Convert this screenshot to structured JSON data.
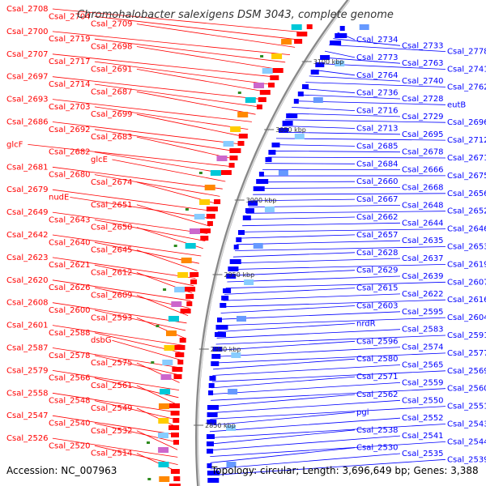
{
  "title": "Chromohalobacter salexigens DSM 3043, complete genome",
  "accession": "Accession: NC_007963",
  "summary": "Topology: circular; Length: 3,696,649 bp; Genes: 3,388",
  "colors": {
    "reverse": "#ff0000",
    "forward": "#0000ff",
    "backbone": "#888888",
    "marker": "#2e8b1e"
  },
  "kbp_marks": [
    {
      "label": "3100 kbp"
    },
    {
      "label": "3050 kbp"
    },
    {
      "label": "3000 kbp"
    },
    {
      "label": "2950 kbp"
    },
    {
      "label": "2900 kbp"
    },
    {
      "label": "2850 kbp"
    }
  ],
  "left_labels": [
    "Csal_2708",
    "Csal_2704",
    "Csal_2709",
    "Csal_2700",
    "Csal_2719",
    "Csal_2698",
    "Csal_2707",
    "Csal_2717",
    "Csal_2691",
    "Csal_2697",
    "Csal_2714",
    "Csal_2687",
    "Csal_2693",
    "Csal_2703",
    "Csal_2699",
    "Csal_2686",
    "Csal_2692",
    "Csal_2683",
    "glcF",
    "Csal_2682",
    "glcE",
    "Csal_2681",
    "Csal_2680",
    "Csal_2674",
    "Csal_2679",
    "nudE",
    "Csal_2651",
    "Csal_2649",
    "Csal_2643",
    "Csal_2650",
    "Csal_2642",
    "Csal_2640",
    "Csal_2645",
    "Csal_2623",
    "Csal_2621",
    "Csal_2612",
    "Csal_2620",
    "Csal_2626",
    "Csal_2609",
    "Csal_2608",
    "Csal_2600",
    "Csal_2593",
    "Csal_2601",
    "Csal_2588",
    "dsbG",
    "Csal_2587",
    "Csal_2578",
    "Csal_2575",
    "Csal_2579",
    "Csal_2566",
    "Csal_2561",
    "Csal_2558",
    "Csal_2548",
    "Csal_2549",
    "Csal_2547",
    "Csal_2540",
    "Csal_2532",
    "Csal_2526",
    "Csal_2520",
    "Csal_2514"
  ],
  "right_labels": [
    "Csal_2734",
    "Csal_2733",
    "Csal_2778",
    "Csal_2773",
    "Csal_2763",
    "Csal_2741",
    "Csal_2764",
    "Csal_2740",
    "Csal_2762",
    "Csal_2736",
    "Csal_2728",
    "eutB",
    "Csal_2716",
    "Csal_2729",
    "Csal_2696",
    "Csal_2713",
    "Csal_2695",
    "Csal_2712",
    "Csal_2685",
    "Csal_2678",
    "Csal_2671",
    "Csal_2684",
    "Csal_2666",
    "Csal_2675",
    "Csal_2660",
    "Csal_2668",
    "Csal_2656",
    "Csal_2667",
    "Csal_2648",
    "Csal_2652",
    "Csal_2662",
    "Csal_2644",
    "Csal_2646",
    "Csal_2657",
    "Csal_2635",
    "Csal_2653",
    "Csal_2628",
    "Csal_2637",
    "Csal_2619",
    "Csal_2629",
    "Csal_2639",
    "Csal_2607",
    "Csal_2615",
    "Csal_2622",
    "Csal_2616",
    "Csal_2603",
    "Csal_2595",
    "Csal_2604",
    "nrdR",
    "Csal_2583",
    "Csal_2591",
    "Csal_2596",
    "Csal_2574",
    "Csal_2577",
    "Csal_2580",
    "Csal_2565",
    "Csal_2569",
    "Csal_2571",
    "Csal_2559",
    "Csal_2560",
    "Csal_2562",
    "Csal_2550",
    "Csal_2551",
    "pgi",
    "Csal_2552",
    "Csal_2543",
    "Csal_2538",
    "Csal_2541",
    "Csal_2544",
    "Csal_2530",
    "Csal_2535",
    "Csal_2539"
  ]
}
